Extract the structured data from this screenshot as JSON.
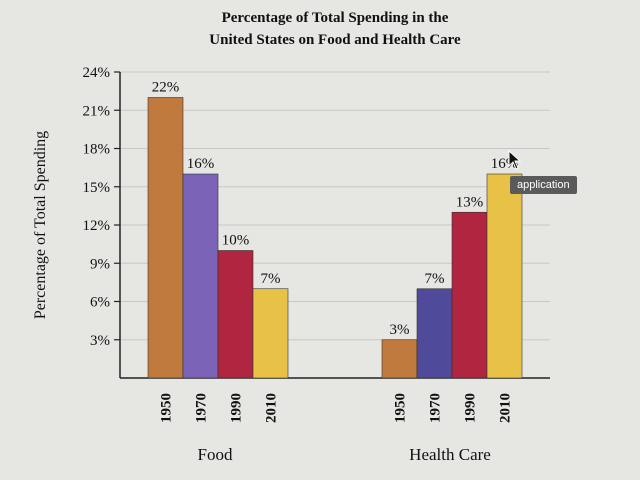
{
  "chart_data": {
    "type": "bar",
    "title": [
      "Percentage of Total Spending in the",
      "United States on Food and Health Care"
    ],
    "ylabel": "Percentage of Total Spending",
    "ylim": [
      0,
      24
    ],
    "yticks": [
      "3%",
      "6%",
      "9%",
      "12%",
      "15%",
      "18%",
      "21%",
      "24%"
    ],
    "ytick_values": [
      3,
      6,
      9,
      12,
      15,
      18,
      21,
      24
    ],
    "groups": [
      {
        "name": "Food",
        "bars": [
          {
            "year": "1950",
            "value": 22,
            "label": "22%",
            "color": "#c07a3e"
          },
          {
            "year": "1970",
            "value": 16,
            "label": "16%",
            "color": "#7b64b8"
          },
          {
            "year": "1990",
            "value": 10,
            "label": "10%",
            "color": "#b0253f"
          },
          {
            "year": "2010",
            "value": 7,
            "label": "7%",
            "color": "#e8c246"
          }
        ]
      },
      {
        "name": "Health Care",
        "bars": [
          {
            "year": "1950",
            "value": 3,
            "label": "3%",
            "color": "#c07a3e"
          },
          {
            "year": "1970",
            "value": 7,
            "label": "7%",
            "color": "#4f4a9a"
          },
          {
            "year": "1990",
            "value": 13,
            "label": "13%",
            "color": "#b0253f"
          },
          {
            "year": "2010",
            "value": 16,
            "label": "16%",
            "color": "#e8c246"
          }
        ]
      }
    ],
    "grid": true
  },
  "tooltip": {
    "text": "application"
  }
}
